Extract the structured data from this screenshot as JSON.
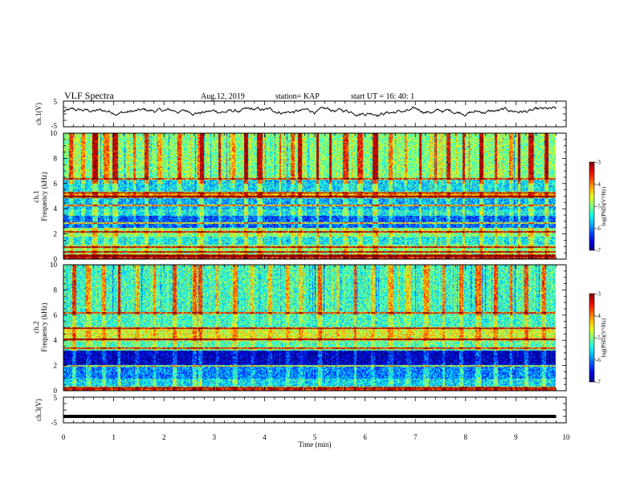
{
  "header": {
    "title": "VLF Spectra",
    "date": "Aug.12, 2019",
    "station": "station= KAP",
    "start_ut": "start  UT =   16: 40: 1"
  },
  "chart_data": [
    {
      "id": "ch1-waveform",
      "type": "line",
      "ylabel": "ch.1(V)",
      "yticks": [
        "5",
        "-5"
      ],
      "ylim": [
        -5,
        5
      ],
      "xlim": [
        0,
        10
      ],
      "trace_xmax": 9.8,
      "approx_mean": 1.0,
      "approx_amplitude": 1.8,
      "color": "#000000"
    },
    {
      "id": "ch1-spectrogram",
      "type": "heatmap",
      "ylabel_channel": "ch.1",
      "ylabel": "Frequency  (kHz)",
      "yticks": [
        "10",
        "8",
        "6",
        "4",
        "2",
        "0"
      ],
      "ylim": [
        0,
        10
      ],
      "xlim": [
        0,
        10
      ],
      "data_xmax": 9.8,
      "colorbar": {
        "label": "log(PSD)(V²/Hz)",
        "range": [
          -7,
          -3
        ],
        "ticks": [
          "-3",
          "-4",
          "-5",
          "-6",
          "-7"
        ]
      },
      "bands": [
        {
          "from": 0.0,
          "to": 0.4,
          "level": -3.6
        },
        {
          "from": 0.4,
          "to": 1.2,
          "level": -5.0
        },
        {
          "from": 1.2,
          "to": 1.8,
          "level": -5.5
        },
        {
          "from": 1.8,
          "to": 2.5,
          "level": -5.0
        },
        {
          "from": 2.5,
          "to": 3.5,
          "level": -6.2
        },
        {
          "from": 3.5,
          "to": 4.0,
          "level": -5.5
        },
        {
          "from": 4.0,
          "to": 4.9,
          "level": -5.8
        },
        {
          "from": 4.9,
          "to": 5.4,
          "level": -4.2
        },
        {
          "from": 5.4,
          "to": 6.4,
          "level": -5.6
        },
        {
          "from": 6.4,
          "to": 10.0,
          "level": -5.0
        }
      ],
      "lines_khz": [
        0.3,
        0.6,
        1.0,
        2.2,
        2.9,
        4.3,
        5.0,
        5.3,
        6.4
      ],
      "spike_times_min": [
        0.15,
        0.38,
        0.62,
        0.85,
        1.02,
        1.4,
        1.65,
        1.9,
        2.3,
        2.68,
        2.75,
        3.1,
        3.35,
        3.62,
        3.9,
        4.3,
        4.55,
        4.7,
        5.05,
        5.3,
        5.6,
        5.9,
        6.2,
        6.5,
        6.8,
        7.1,
        7.4,
        7.65,
        7.95,
        8.3,
        8.6,
        8.9,
        9.05,
        9.3,
        9.6
      ]
    },
    {
      "id": "ch2-spectrogram",
      "type": "heatmap",
      "ylabel_channel": "ch.2",
      "ylabel": "Frequency  (kHz)",
      "yticks": [
        "10",
        "8",
        "6",
        "4",
        "2",
        "0"
      ],
      "ylim": [
        0,
        10
      ],
      "xlim": [
        0,
        10
      ],
      "data_xmax": 9.8,
      "colorbar": {
        "label": "log(PSD)(V²/Hz)",
        "range": [
          -7,
          -3
        ],
        "ticks": [
          "-3",
          "-4",
          "-5",
          "-6",
          "-7"
        ]
      },
      "bands": [
        {
          "from": 0.0,
          "to": 0.3,
          "level": -3.6
        },
        {
          "from": 0.3,
          "to": 1.0,
          "level": -5.6
        },
        {
          "from": 1.0,
          "to": 2.0,
          "level": -6.0
        },
        {
          "from": 2.0,
          "to": 3.2,
          "level": -6.8
        },
        {
          "from": 3.2,
          "to": 4.0,
          "level": -5.2
        },
        {
          "from": 4.0,
          "to": 5.0,
          "level": -4.6
        },
        {
          "from": 5.0,
          "to": 6.2,
          "level": -5.3
        },
        {
          "from": 6.2,
          "to": 10.0,
          "level": -5.3
        }
      ],
      "lines_khz": [
        0.3,
        2.0,
        3.4,
        4.1,
        5.0,
        6.2
      ],
      "spike_times_min": [
        0.2,
        0.5,
        0.8,
        1.1,
        1.45,
        1.8,
        2.2,
        2.6,
        2.72,
        3.05,
        3.4,
        3.75,
        4.1,
        4.45,
        4.72,
        5.1,
        5.45,
        5.8,
        6.15,
        6.5,
        6.85,
        7.2,
        7.55,
        7.9,
        8.25,
        8.6,
        8.9,
        9.2,
        9.55
      ]
    },
    {
      "id": "ch3-waveform",
      "type": "line",
      "ylabel": "ch.3(V)",
      "yticks": [
        "5",
        "-5"
      ],
      "ylim": [
        -5,
        5
      ],
      "xlim": [
        0,
        10
      ],
      "trace_xmax": 9.8,
      "approx_mean": -2.5,
      "approx_amplitude": 0.0,
      "color": "#000000"
    }
  ],
  "xaxis": {
    "label": "Time  (min)",
    "ticks": [
      "0",
      "1",
      "2",
      "3",
      "4",
      "5",
      "6",
      "7",
      "8",
      "9",
      "10"
    ],
    "range": [
      0,
      10
    ]
  }
}
